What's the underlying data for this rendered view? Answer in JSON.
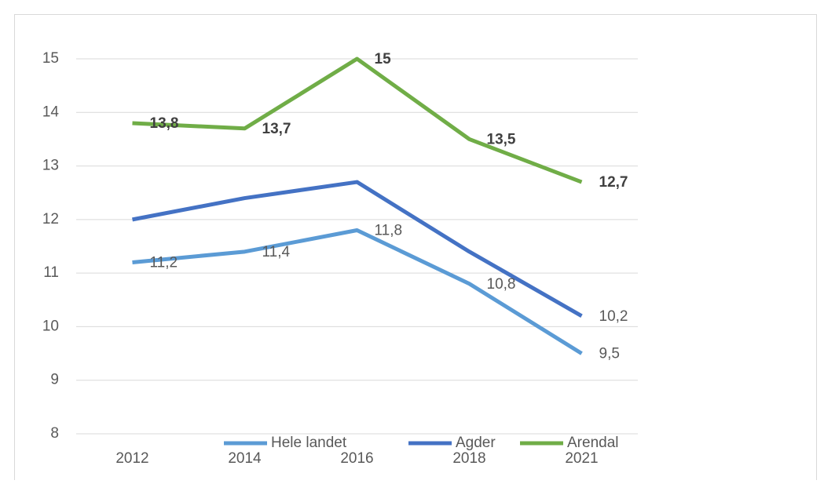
{
  "chart_data": {
    "type": "line",
    "categories": [
      "2012",
      "2014",
      "2016",
      "2018",
      "2021"
    ],
    "series": [
      {
        "name": "Hele landet",
        "color": "#5b9bd5",
        "values": [
          11.2,
          11.4,
          11.8,
          10.8,
          9.5
        ],
        "value_labels": [
          "11,2",
          "11,4",
          "11,8",
          "10,8",
          "9,5"
        ]
      },
      {
        "name": "Agder",
        "color": "#4472c4",
        "values": [
          12.0,
          12.4,
          12.7,
          11.4,
          10.2
        ],
        "value_labels": [
          null,
          null,
          null,
          null,
          "10,2"
        ]
      },
      {
        "name": "Arendal",
        "color": "#70ad47",
        "values": [
          13.8,
          13.7,
          15,
          13.5,
          12.7
        ],
        "value_labels": [
          "13,8",
          "13,7",
          "15",
          "13,5",
          "12,7"
        ],
        "bold": true
      }
    ],
    "ylim": [
      8,
      15
    ],
    "yticks": [
      8,
      9,
      10,
      11,
      12,
      13,
      14,
      15
    ],
    "grid": true,
    "legend": "bottom"
  }
}
